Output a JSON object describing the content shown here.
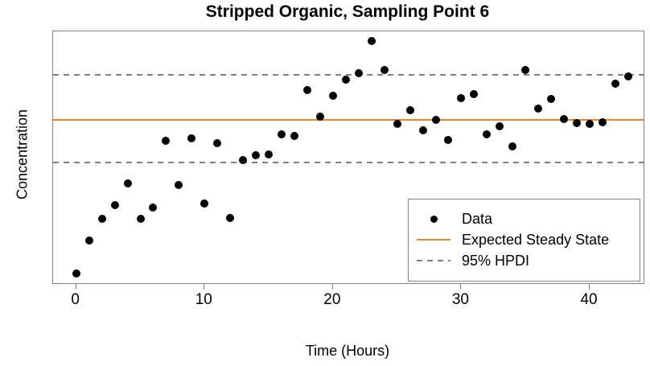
{
  "title": "Stripped Organic, Sampling Point 6",
  "axes": {
    "x_label": "Time (Hours)",
    "y_label": "Concentration"
  },
  "legend": {
    "items": [
      {
        "label": "Data",
        "symbol": "point"
      },
      {
        "label": "Expected Steady State",
        "symbol": "solid-line"
      },
      {
        "label": "95% HPDI",
        "symbol": "dashed-line"
      }
    ]
  },
  "colors": {
    "point": "#000000",
    "steady_state_line": "#E8862C",
    "hpdi_line": "#808080",
    "axis": "#828282",
    "text": "#000000",
    "background": "#ffffff"
  },
  "chart_data": {
    "type": "scatter",
    "title": "Stripped Organic, Sampling Point 6",
    "xlabel": "Time (Hours)",
    "ylabel": "Concentration",
    "x_ticks": [
      0,
      10,
      20,
      30,
      40
    ],
    "xlim": [
      -1.8,
      44.2
    ],
    "ylim": [
      0,
      100
    ],
    "y_units": "arbitrary (no y-axis tick labels shown in figure)",
    "grid": false,
    "legend_position": "bottom-right",
    "x": [
      0,
      1,
      2,
      3,
      4,
      5,
      6,
      7,
      8,
      9,
      10,
      11,
      12,
      13,
      14,
      15,
      16,
      17,
      18,
      19,
      20,
      21,
      22,
      23,
      24,
      25,
      26,
      27,
      28,
      29,
      30,
      31,
      32,
      33,
      34,
      35,
      36,
      37,
      38,
      39,
      40,
      41,
      42,
      43
    ],
    "y": [
      3.8,
      16.9,
      25.6,
      31.0,
      39.6,
      25.6,
      30.0,
      56.5,
      39.0,
      57.5,
      31.6,
      55.6,
      25.9,
      48.9,
      50.8,
      51.1,
      59.1,
      58.5,
      76.7,
      66.1,
      74.4,
      80.8,
      83.4,
      96.2,
      84.7,
      63.3,
      68.7,
      60.7,
      64.9,
      56.9,
      73.5,
      75.1,
      59.1,
      62.3,
      54.3,
      84.7,
      69.3,
      73.2,
      65.2,
      63.6,
      63.3,
      63.9,
      79.2,
      82.1
    ],
    "reference_lines": {
      "expected_steady_state": 64.9,
      "hpdi_upper": 82.7,
      "hpdi_lower": 47.9
    }
  }
}
